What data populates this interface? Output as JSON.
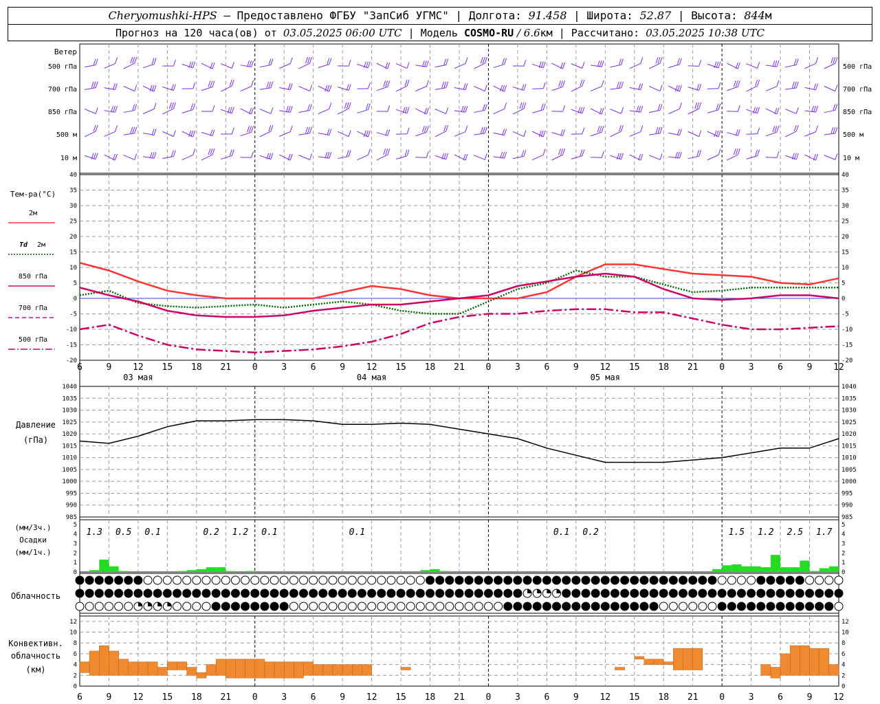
{
  "header": {
    "station": "Cheryomushki-HPS",
    "dash": " – ",
    "provided_label": "Предоставлено ФГБУ \"ЗапСиб УГМС\"",
    "sep": " | ",
    "lon_label": "Долгота: ",
    "lon_value": "91.458",
    "lat_label": "Широта: ",
    "lat_value": "52.87",
    "alt_label": "Высота: ",
    "alt_value": "844",
    "alt_unit": "м",
    "forecast_label": "Прогноз на 120 часа(ов) от ",
    "forecast_start": "03.05.2025 06:00 UTC",
    "model_label": "  |  Модель ",
    "model_name": "COSMO-RU",
    "model_res": " / 6.6",
    "model_res_unit": "км",
    "computed_label": " | Рассчитано: ",
    "computed_time": "03.05.2025 10:38 UTC"
  },
  "axis": {
    "hour_labels": [
      "6",
      "9",
      "12",
      "15",
      "18",
      "21",
      "0",
      "3",
      "6",
      "9",
      "12",
      "15",
      "18",
      "21",
      "0",
      "3",
      "6",
      "9",
      "12",
      "15",
      "18",
      "21",
      "0",
      "3",
      "6",
      "9",
      "12"
    ],
    "dates": [
      {
        "label": "03 мая",
        "hour_index": 2
      },
      {
        "label": "04 мая",
        "hour_index": 10
      },
      {
        "label": "05 мая",
        "hour_index": 18
      }
    ],
    "day_boundaries_hour_index": [
      6,
      14,
      22
    ]
  },
  "wind": {
    "title": "Ветер",
    "levels": [
      "500 гПа",
      "700 гПа",
      "850 гПа",
      "500 м",
      "10  м"
    ]
  },
  "temperature": {
    "title": "Тем-ра(°C)",
    "ylim": [
      -20,
      40
    ],
    "ticks": [
      40,
      35,
      30,
      25,
      20,
      15,
      10,
      5,
      0,
      -5,
      -10,
      -15,
      -20
    ],
    "legend": [
      {
        "label": "2м",
        "color": "#ff3333",
        "style": "solid"
      },
      {
        "label_a": "Td",
        "label_b": "2м",
        "color": "#006600",
        "style": "dotted"
      },
      {
        "label": "850 гПа",
        "color": "#cc0066",
        "style": "solid"
      },
      {
        "label": "700 гПа",
        "color": "#dd0088",
        "style": "dash"
      },
      {
        "label": "500 гПа",
        "color": "#cc0066",
        "style": "dashdot"
      }
    ]
  },
  "pressure": {
    "title_a": "Давление",
    "title_b": "(гПа)",
    "ylim": [
      985,
      1040
    ],
    "ticks": [
      1040,
      1035,
      1030,
      1025,
      1020,
      1015,
      1010,
      1005,
      1000,
      995,
      990,
      985
    ]
  },
  "precip": {
    "title_a": "(мм/3ч.)",
    "title_b": "Осадки",
    "title_c": "(мм/1ч.)",
    "ticks": [
      "5",
      "4",
      "3",
      "2",
      "1",
      "0"
    ],
    "totals": [
      {
        "value": "1.3",
        "hour_index": 0.5
      },
      {
        "value": "0.5",
        "hour_index": 1.5
      },
      {
        "value": "0.1",
        "hour_index": 2.5
      },
      {
        "value": "0.2",
        "hour_index": 4.5
      },
      {
        "value": "1.2",
        "hour_index": 5.5
      },
      {
        "value": "0.1",
        "hour_index": 6.5
      },
      {
        "value": "0.1",
        "hour_index": 9.5
      },
      {
        "value": "0.1",
        "hour_index": 16.5
      },
      {
        "value": "0.2",
        "hour_index": 17.5
      },
      {
        "value": "1.5",
        "hour_index": 22.5
      },
      {
        "value": "1.2",
        "hour_index": 23.5
      },
      {
        "value": "2.5",
        "hour_index": 24.5
      },
      {
        "value": "1.7",
        "hour_index": 25.5
      }
    ]
  },
  "cloud": {
    "title": "Облачность"
  },
  "convective": {
    "title_a": "Конвективн.",
    "title_b": "облачность",
    "title_c": "(км)",
    "ylim": [
      0,
      13
    ],
    "ticks": [
      "12",
      "10",
      "8",
      "6",
      "4",
      "2",
      "0"
    ]
  },
  "colors": {
    "wind": "#7a2be2",
    "grid": "#999999",
    "zero_line": "#3344cc",
    "precip_rain": "#22dd22",
    "precip_snow": "#2244dd",
    "conv": "#f08a30",
    "pressure": "#000000"
  },
  "chart_data": [
    {
      "type": "line",
      "name": "temperature",
      "x_hours_from_start": [
        0,
        3,
        6,
        9,
        12,
        15,
        18,
        21,
        24,
        27,
        30,
        33,
        36,
        39,
        42,
        45,
        48,
        51,
        54,
        57,
        60,
        63,
        66,
        69,
        72,
        75,
        78
      ],
      "series": [
        {
          "name": "2м",
          "values": [
            11.5,
            9,
            5.5,
            2.5,
            1,
            0,
            0,
            0,
            0,
            2,
            4,
            3,
            1,
            0,
            0,
            0,
            2,
            7,
            11,
            11,
            9.5,
            8,
            7.5,
            7,
            5,
            4.5,
            6.5
          ]
        },
        {
          "name": "Td 2м",
          "values": [
            1,
            2.5,
            -1.5,
            -2.5,
            -3,
            -2.5,
            -2,
            -3,
            -2,
            -1,
            -2,
            -4,
            -5,
            -5,
            -1,
            3,
            5,
            9,
            7,
            7,
            4.5,
            2,
            2.5,
            3.5,
            3.5,
            3.5,
            3.5
          ]
        },
        {
          "name": "850 гПа",
          "values": [
            3.5,
            1,
            -1,
            -4,
            -5.5,
            -6,
            -6,
            -5.5,
            -4,
            -3,
            -2,
            -2,
            -1,
            0,
            1,
            4,
            5.5,
            7,
            8,
            7,
            3,
            0,
            -0.5,
            0,
            1,
            1,
            0
          ]
        },
        {
          "name": "500 гПа",
          "values": [
            -10,
            -8.5,
            -12,
            -15,
            -16.5,
            -17,
            -17.5,
            -17,
            -16.5,
            -15.5,
            -14,
            -11.5,
            -8,
            -6,
            -5,
            -5,
            -4,
            -3.5,
            -3.5,
            -4.5,
            -4.5,
            -6.5,
            -8.5,
            -10,
            -10,
            -9.5,
            -9
          ]
        }
      ]
    },
    {
      "type": "line",
      "name": "pressure",
      "x_hours_from_start": [
        0,
        3,
        6,
        9,
        12,
        15,
        18,
        21,
        24,
        27,
        30,
        33,
        36,
        39,
        42,
        45,
        48,
        51,
        54,
        57,
        60,
        63,
        66,
        69,
        72,
        75,
        78
      ],
      "series": [
        {
          "name": "pressure",
          "values": [
            1017,
            1016,
            1019,
            1023,
            1025.5,
            1025.5,
            1026,
            1026,
            1025.5,
            1024,
            1024,
            1024.5,
            1024,
            1022,
            1020,
            1018,
            1014,
            1011,
            1008,
            1008,
            1008,
            1009,
            1010,
            1012,
            1014,
            1014,
            1018
          ]
        }
      ]
    },
    {
      "type": "bar",
      "name": "precip_1h",
      "x_hours_from_start": [
        2,
        3,
        4,
        5,
        11,
        12,
        13,
        14,
        15,
        16,
        18,
        36,
        37,
        38,
        66,
        67,
        68,
        69,
        70,
        71,
        72,
        73,
        74,
        75,
        76,
        77,
        78
      ],
      "values": [
        0.2,
        1.3,
        0.6,
        0.1,
        0.1,
        0.2,
        0.3,
        0.5,
        0.5,
        0.1,
        0.1,
        0.2,
        0.3,
        0.1,
        0.3,
        0.7,
        0.8,
        0.6,
        0.6,
        0.5,
        1.8,
        0.5,
        0.5,
        1.2,
        0.1,
        0.4,
        0.6
      ]
    },
    {
      "type": "bar",
      "name": "convective_cloud",
      "x_hours_from_start": [
        1,
        2,
        3,
        4,
        5,
        6,
        7,
        8,
        9,
        10,
        11,
        12,
        13,
        14,
        15,
        16,
        17,
        18,
        19,
        20,
        21,
        22,
        23,
        24,
        25,
        26,
        27,
        28,
        29,
        30,
        34,
        56,
        57,
        58,
        59,
        60,
        61,
        62,
        63,
        64,
        71,
        72,
        73,
        74,
        75,
        76,
        77,
        78
      ],
      "base_km": [
        2.5,
        2,
        2,
        2,
        2,
        2,
        2,
        2,
        2,
        3,
        3,
        2,
        1.5,
        2,
        2,
        1.5,
        1.5,
        1.5,
        1.5,
        1.5,
        1.5,
        1.5,
        1.5,
        2,
        2,
        2,
        2,
        2,
        2,
        2,
        3,
        3,
        5,
        5,
        4,
        4,
        4,
        3,
        3,
        3,
        2,
        1.5,
        2,
        2,
        2,
        2,
        2,
        2
      ],
      "top_km": [
        4.5,
        6.5,
        7.5,
        6.5,
        5,
        4.5,
        4.5,
        4.5,
        3.5,
        4.5,
        4.5,
        3.5,
        2.5,
        4,
        5,
        5,
        5,
        5,
        5,
        4.5,
        4.5,
        4.5,
        4.5,
        4.5,
        4,
        4,
        4,
        4,
        4,
        4,
        3.5,
        3.5,
        5,
        5.5,
        5,
        5,
        4.5,
        7,
        7,
        7,
        4,
        3.5,
        6,
        7.5,
        7.5,
        7,
        7,
        4
      ]
    }
  ]
}
